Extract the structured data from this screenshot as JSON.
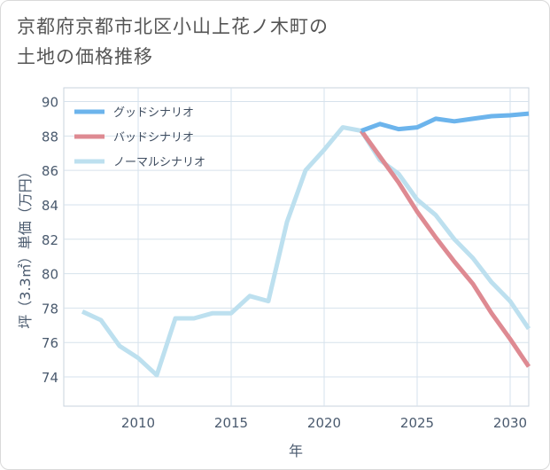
{
  "title_lines": [
    "京都府京都市北区小山上花ノ木町の",
    "土地の価格推移"
  ],
  "chart_data": {
    "type": "line",
    "title": "京都府京都市北区小山上花ノ木町の土地の価格推移",
    "xlabel": "年",
    "ylabel": "坪（3.3㎡）単価（万円）",
    "xlim": [
      2006,
      2031
    ],
    "ylim": [
      72.3,
      90.8
    ],
    "xticks": [
      2010,
      2015,
      2020,
      2025,
      2030
    ],
    "yticks": [
      74,
      76,
      78,
      80,
      82,
      84,
      86,
      88,
      90
    ],
    "grid": true,
    "legend_position": "top-left",
    "series": [
      {
        "name": "グッドシナリオ",
        "color": "#6cb4ec",
        "x": [
          2022,
          2023,
          2024,
          2025,
          2026,
          2027,
          2028,
          2029,
          2030,
          2031
        ],
        "values": [
          88.3,
          88.7,
          88.4,
          88.5,
          89.0,
          88.85,
          89.0,
          89.15,
          89.2,
          89.3
        ]
      },
      {
        "name": "バッドシナリオ",
        "color": "#de8a92",
        "x": [
          2022,
          2023,
          2024,
          2025,
          2026,
          2027,
          2028,
          2029,
          2030,
          2031
        ],
        "values": [
          88.3,
          86.8,
          85.3,
          83.6,
          82.1,
          80.7,
          79.4,
          77.7,
          76.2,
          74.6
        ]
      },
      {
        "name": "ノーマルシナリオ",
        "color": "#bde0ef",
        "x": [
          2007,
          2008,
          2009,
          2010,
          2011,
          2012,
          2013,
          2014,
          2015,
          2016,
          2017,
          2018,
          2019,
          2020,
          2021,
          2022,
          2023,
          2024,
          2025,
          2026,
          2027,
          2028,
          2029,
          2030,
          2031
        ],
        "values": [
          77.8,
          77.3,
          75.8,
          75.1,
          74.1,
          77.4,
          77.4,
          77.7,
          77.7,
          78.7,
          78.4,
          83.0,
          86.0,
          87.2,
          88.5,
          88.3,
          86.6,
          85.8,
          84.3,
          83.4,
          82.0,
          80.9,
          79.5,
          78.4,
          76.8
        ]
      }
    ]
  }
}
